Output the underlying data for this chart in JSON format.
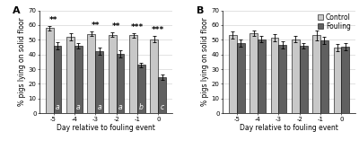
{
  "panel_A": {
    "label": "A",
    "days": [
      "-5",
      "-4",
      "-3",
      "-2",
      "-1",
      "0"
    ],
    "control_values": [
      58.0,
      52.0,
      54.0,
      53.5,
      53.0,
      50.5
    ],
    "fouling_values": [
      46.0,
      46.0,
      42.5,
      40.5,
      33.0,
      24.5
    ],
    "control_errors": [
      1.5,
      2.5,
      1.5,
      1.5,
      1.5,
      2.0
    ],
    "fouling_errors": [
      2.5,
      2.0,
      2.5,
      2.5,
      1.5,
      2.0
    ],
    "sig_labels": [
      "**",
      "",
      "**",
      "**",
      "***",
      "***"
    ],
    "letter_labels": [
      "a",
      "a",
      "a",
      "a",
      "b",
      "c"
    ],
    "ylim": [
      0,
      70
    ],
    "yticks": [
      0,
      10,
      20,
      30,
      40,
      50,
      60,
      70
    ],
    "ylabel": "% pigs lying on solid floor",
    "xlabel": "Day relative to fouling event"
  },
  "panel_B": {
    "label": "B",
    "days": [
      "-5",
      "-4",
      "-3",
      "-2",
      "-1",
      "0"
    ],
    "control_values": [
      53.5,
      54.5,
      51.5,
      50.5,
      53.0,
      44.5
    ],
    "fouling_values": [
      48.0,
      50.5,
      46.5,
      46.0,
      49.5,
      45.5
    ],
    "control_errors": [
      2.5,
      2.0,
      2.5,
      2.0,
      3.5,
      2.5
    ],
    "fouling_errors": [
      2.5,
      2.0,
      2.5,
      2.0,
      2.5,
      2.5
    ],
    "sig_labels": [
      "",
      "",
      "",
      "",
      "",
      ""
    ],
    "letter_labels": [
      "",
      "",
      "",
      "",
      "",
      ""
    ],
    "ylim": [
      0,
      70
    ],
    "yticks": [
      0,
      10,
      20,
      30,
      40,
      50,
      60,
      70
    ],
    "ylabel": "% pigs lying on solid floor",
    "xlabel": "Day relative to fouling event"
  },
  "control_color": "#c8c8c8",
  "fouling_color": "#606060",
  "bar_width": 0.38,
  "legend_labels": [
    "Control",
    "Fouling"
  ],
  "sig_fontsize": 6.5,
  "letter_fontsize": 5.5,
  "tick_fontsize": 5.0,
  "label_fontsize": 5.5,
  "legend_fontsize": 5.5,
  "panel_label_fontsize": 8
}
